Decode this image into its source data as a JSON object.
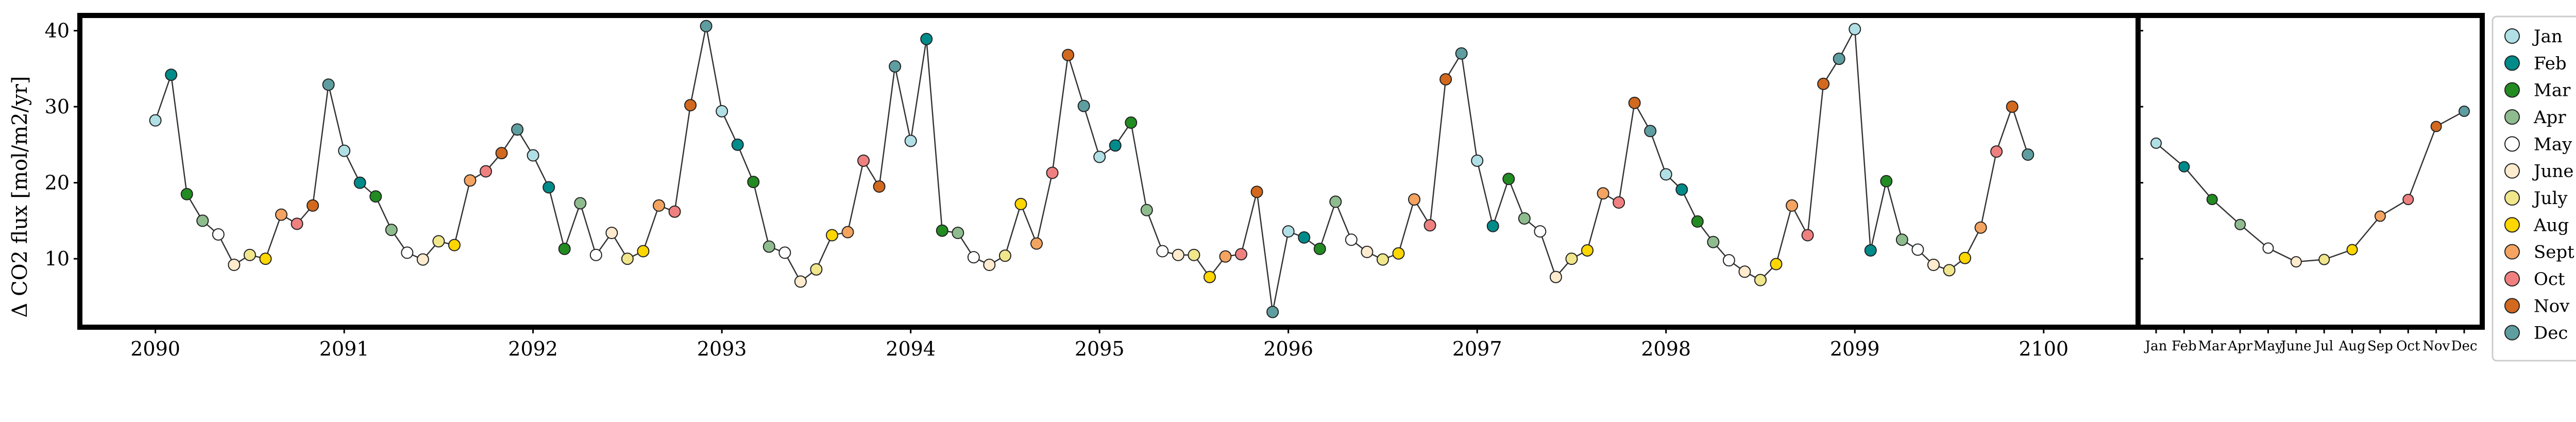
{
  "chart_data": [
    {
      "type": "line",
      "ylabel": "Δ CO2 flux [mol/m2/yr]",
      "xlim": [
        2089.6,
        2100.5
      ],
      "ylim": [
        1,
        42
      ],
      "x_ticks": [
        2090,
        2091,
        2092,
        2093,
        2094,
        2095,
        2096,
        2097,
        2098,
        2099,
        2100
      ],
      "x_tick_labels": [
        "2090",
        "2091",
        "2092",
        "2093",
        "2094",
        "2095",
        "2096",
        "2097",
        "2098",
        "2099",
        "2100"
      ],
      "y_ticks": [
        10,
        20,
        30,
        40
      ],
      "y_tick_labels": [
        "10",
        "20",
        "30",
        "40"
      ],
      "grid": false,
      "start_year": 2090,
      "values": [
        28.2,
        34.2,
        18.5,
        15.0,
        13.2,
        9.2,
        10.5,
        10.0,
        15.8,
        14.6,
        17.0,
        32.9,
        24.2,
        20.0,
        18.2,
        13.8,
        10.8,
        9.9,
        12.3,
        11.8,
        20.3,
        21.5,
        23.9,
        27.0,
        23.6,
        19.4,
        11.3,
        17.3,
        10.5,
        13.4,
        10.0,
        11.0,
        17.0,
        16.2,
        30.2,
        40.6,
        29.4,
        25.0,
        20.1,
        11.6,
        10.8,
        7.0,
        8.6,
        13.1,
        13.5,
        22.9,
        19.5,
        35.3,
        25.5,
        38.9,
        13.7,
        13.4,
        10.2,
        9.2,
        10.4,
        17.2,
        12.0,
        21.3,
        36.8,
        30.1,
        23.4,
        24.9,
        27.9,
        16.4,
        11.0,
        10.5,
        10.5,
        7.6,
        10.3,
        10.6,
        18.8,
        3.0,
        13.6,
        12.8,
        11.3,
        17.5,
        12.5,
        10.9,
        9.9,
        10.7,
        17.8,
        14.4,
        33.6,
        37.0,
        22.9,
        14.3,
        20.5,
        15.3,
        13.6,
        7.6,
        10.0,
        11.1,
        18.6,
        17.4,
        30.5,
        26.8,
        21.1,
        19.1,
        14.9,
        12.2,
        9.8,
        8.3,
        7.2,
        9.3,
        17.0,
        13.1,
        33.0,
        36.3,
        40.2,
        11.1,
        20.2,
        12.5,
        11.2,
        9.2,
        8.5,
        10.1,
        14.1,
        24.1,
        30.0,
        23.7
      ]
    },
    {
      "type": "line",
      "categories": [
        "Jan",
        "Feb",
        "Mar",
        "Apr",
        "May",
        "June",
        "Jul",
        "Aug",
        "Sep",
        "Oct",
        "Nov",
        "Dec"
      ],
      "values": [
        25.2,
        22.1,
        17.8,
        14.5,
        11.4,
        9.6,
        9.9,
        11.2,
        15.6,
        17.8,
        27.4,
        29.4
      ],
      "ylim": [
        1,
        42
      ]
    }
  ],
  "legend": {
    "placement": "right",
    "entries": [
      {
        "label": "Jan",
        "color": "#b0e0e6"
      },
      {
        "label": "Feb",
        "color": "#008b8b"
      },
      {
        "label": "Mar",
        "color": "#228b22"
      },
      {
        "label": "Apr",
        "color": "#8fbc8f"
      },
      {
        "label": "May",
        "color": "#ffffff"
      },
      {
        "label": "June",
        "color": "#ffebcd"
      },
      {
        "label": "July",
        "color": "#f0e68c"
      },
      {
        "label": "Aug",
        "color": "#ffd700"
      },
      {
        "label": "Sept",
        "color": "#f4a460"
      },
      {
        "label": "Oct",
        "color": "#f08080"
      },
      {
        "label": "Nov",
        "color": "#d2691e"
      },
      {
        "label": "Dec",
        "color": "#5f9ea0"
      }
    ]
  }
}
